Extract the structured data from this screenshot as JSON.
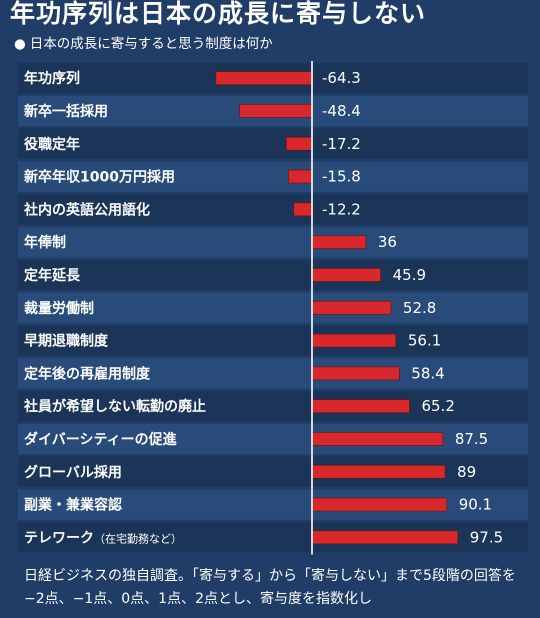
{
  "header": {
    "title": "年功序列は日本の成長に寄与しない",
    "subtitle": "日本の成長に寄与すると思う制度は何か"
  },
  "chart_data": {
    "type": "bar",
    "orientation": "horizontal",
    "categories": [
      "年功序列",
      "新卒一括採用",
      "役職定年",
      "新卒年収1000万円採用",
      "社内の英語公用語化",
      "年俸制",
      "定年延長",
      "裁量労働制",
      "早期退職制度",
      "定年後の再雇用制度",
      "社員が希望しない転勤の廃止",
      "ダイバーシティーの促進",
      "グローバル採用",
      "副業・兼業容認",
      "テレワーク"
    ],
    "category_notes": [
      "",
      "",
      "",
      "",
      "",
      "",
      "",
      "",
      "",
      "",
      "",
      "",
      "",
      "",
      "（在宅勤務など）"
    ],
    "values": [
      -64.3,
      -48.4,
      -17.2,
      -15.8,
      -12.2,
      36,
      45.9,
      52.8,
      56.1,
      58.4,
      65.2,
      87.5,
      89,
      90.1,
      97.5
    ],
    "value_labels": [
      "-64.3",
      "-48.4",
      "-17.2",
      "-15.8",
      "-12.2",
      "36",
      "45.9",
      "52.8",
      "56.1",
      "58.4",
      "65.2",
      "87.5",
      "89",
      "90.1",
      "97.5"
    ],
    "xlim": [
      -100,
      100
    ],
    "grid": false,
    "legend": "none",
    "colors": {
      "bar": "#d9282b",
      "background": "#1f3d67",
      "row_light": "#284b7a",
      "row_dark": "#1b3558",
      "text": "#ffffff"
    }
  },
  "footnote": "日経ビジネスの独自調査。「寄与する」から「寄与しない」まで5段階の回答を−2点、−1点、0点、1点、2点とし、寄与度を指数化し"
}
